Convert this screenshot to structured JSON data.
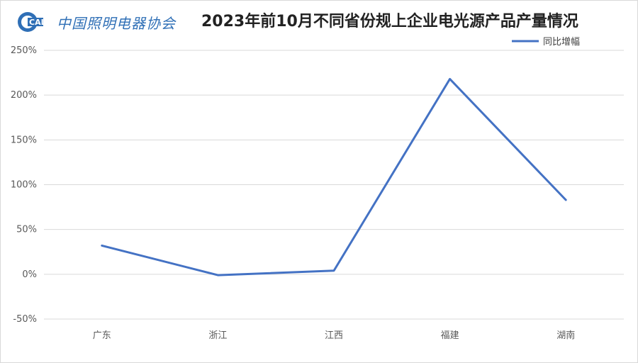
{
  "logo": {
    "badge_text": "CALI",
    "org_name": "中国照明电器协会"
  },
  "chart_data": {
    "type": "line",
    "title": "2023年前10月不同省份规上企业电光源产品产量情况",
    "categories": [
      "广东",
      "浙江",
      "江西",
      "福建",
      "湖南"
    ],
    "series": [
      {
        "name": "同比增幅",
        "values": [
          32,
          -1,
          4,
          218,
          83
        ],
        "color": "#4472c4"
      }
    ],
    "ylim": [
      -50,
      250
    ],
    "yticks": [
      -50,
      0,
      50,
      100,
      150,
      200,
      250
    ],
    "ytick_format": "percent",
    "grid": true,
    "legend": "top-right",
    "xlabel": "",
    "ylabel": ""
  }
}
